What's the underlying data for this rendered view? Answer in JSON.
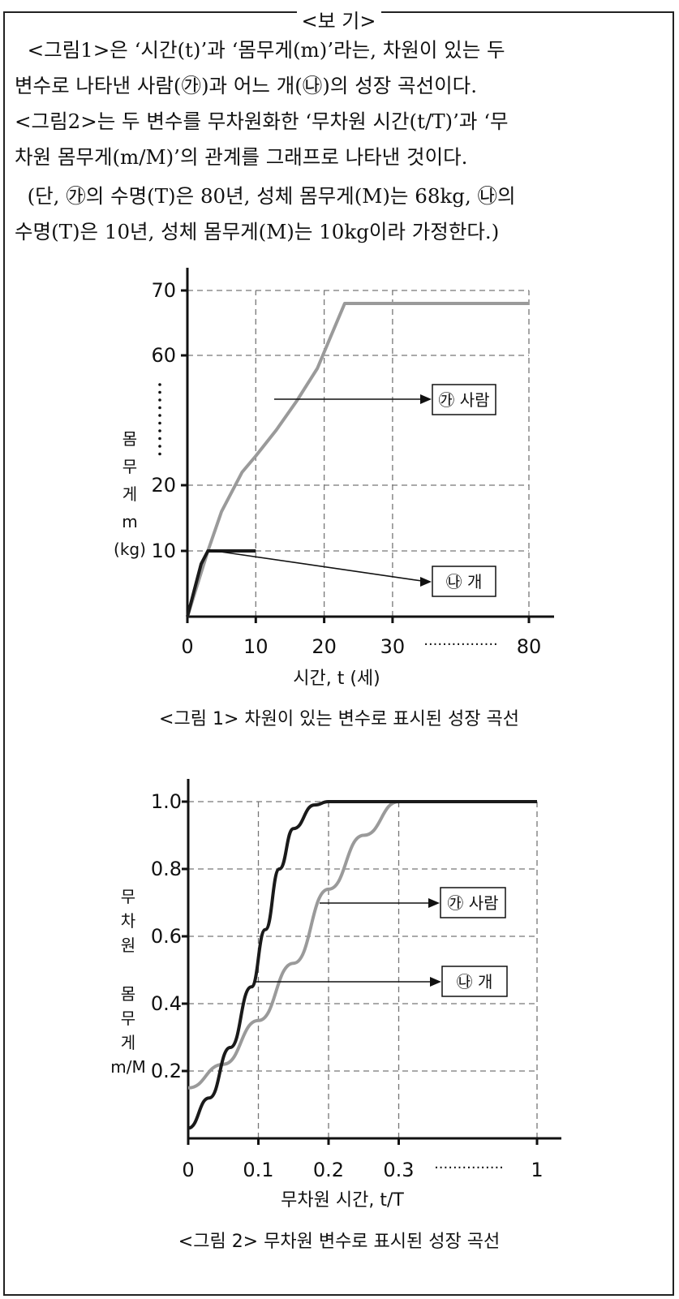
{
  "header": {
    "title": "<보 기>"
  },
  "paragraphs": {
    "p1": [
      "  <그림1>은 ‘시간(t)’과 ‘몸무게(m)’라는, 차원이 있는 두",
      "변수로 나타낸 사람(㉮)과 어느 개(㉯)의 성장 곡선이다.",
      "<그림2>는 두 변수를 무차원화한 ‘무차원 시간(t/T)’과 ‘무",
      "차원 몸무게(m/M)’의 관계를 그래프로 나타낸 것이다."
    ],
    "p2": [
      "  (단, ㉮의 수명(T)은 80년, 성체 몸무게(M)는 68kg, ㉯의",
      "수명(T)은 10년, 성체 몸무게(M)는 10kg이라 가정한다.)"
    ]
  },
  "chart_data": [
    {
      "type": "line",
      "title": "<그림 1> 차원이 있는 변수로 표시된 성장 곡선",
      "xlabel": "시간, t (세)",
      "ylabel": "몸무게 m (kg)",
      "x_ticks": [
        "0",
        "10",
        "20",
        "30",
        "80"
      ],
      "x_ellipsis": "················",
      "y_ticks": [
        "10",
        "20",
        "60",
        "70"
      ],
      "series": [
        {
          "name": "㉮ 사람",
          "color": "#9a9a9a",
          "points": [
            [
              0,
              0
            ],
            [
              3,
              10
            ],
            [
              5,
              16
            ],
            [
              8,
              24
            ],
            [
              10,
              29
            ],
            [
              13,
              37
            ],
            [
              16,
              46
            ],
            [
              19,
              56
            ],
            [
              21,
              63
            ],
            [
              23,
              68
            ],
            [
              30,
              68
            ],
            [
              80,
              68
            ]
          ]
        },
        {
          "name": "㉯ 개",
          "color": "#1a1a1a",
          "points": [
            [
              0,
              0
            ],
            [
              1,
              4
            ],
            [
              2,
              8
            ],
            [
              3,
              10
            ],
            [
              5,
              10
            ],
            [
              10,
              10
            ]
          ]
        }
      ]
    },
    {
      "type": "line",
      "title": "<그림 2> 무차원 변수로 표시된 성장 곡선",
      "xlabel": "무차원 시간, t/T",
      "ylabel": "무차원 몸무게 m/M",
      "x_ticks": [
        "0",
        "0.1",
        "0.2",
        "0.3",
        "1"
      ],
      "x_ellipsis": "···············",
      "y_ticks": [
        "0.2",
        "0.4",
        "0.6",
        "0.8",
        "1.0"
      ],
      "ylim": [
        0,
        1.0
      ],
      "series": [
        {
          "name": "㉮ 사람",
          "color": "#9a9a9a",
          "points": [
            [
              0,
              0.15
            ],
            [
              0.05,
              0.22
            ],
            [
              0.1,
              0.35
            ],
            [
              0.15,
              0.52
            ],
            [
              0.2,
              0.74
            ],
            [
              0.25,
              0.9
            ],
            [
              0.3,
              1.0
            ],
            [
              1,
              1.0
            ]
          ]
        },
        {
          "name": "㉯ 개",
          "color": "#1a1a1a",
          "points": [
            [
              0,
              0.03
            ],
            [
              0.03,
              0.12
            ],
            [
              0.06,
              0.27
            ],
            [
              0.09,
              0.45
            ],
            [
              0.11,
              0.62
            ],
            [
              0.13,
              0.8
            ],
            [
              0.15,
              0.92
            ],
            [
              0.18,
              0.99
            ],
            [
              0.2,
              1.0
            ],
            [
              1,
              1.0
            ]
          ]
        }
      ]
    }
  ]
}
